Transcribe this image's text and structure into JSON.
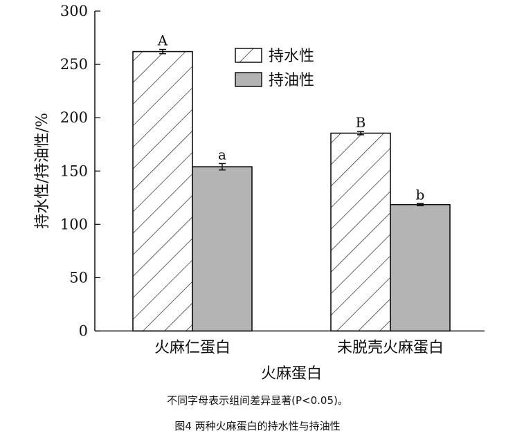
{
  "chart_data": {
    "type": "bar",
    "xlabel": "火麻蛋白",
    "ylabel": "持水性/持油性/%",
    "ylim": [
      0,
      300
    ],
    "yticks": [
      0,
      50,
      100,
      150,
      200,
      250,
      300
    ],
    "categories": [
      "火麻仁蛋白",
      "未脱壳火麻蛋白"
    ],
    "series": [
      {
        "name": "持水性",
        "values": [
          262,
          185.5
        ],
        "errors": [
          2,
          1.5
        ],
        "letters": [
          "A",
          "B"
        ],
        "fill": "hatch"
      },
      {
        "name": "持油性",
        "values": [
          154,
          118.5
        ],
        "errors": [
          3,
          1
        ],
        "letters": [
          "a",
          "b"
        ],
        "fill": "#b4b4b4"
      }
    ],
    "legend": "top-right",
    "grid": false
  },
  "note": "不同字母表示组间差异显著(P<0.05)。",
  "caption": "图4 两种火麻蛋白的持水性与持油性"
}
